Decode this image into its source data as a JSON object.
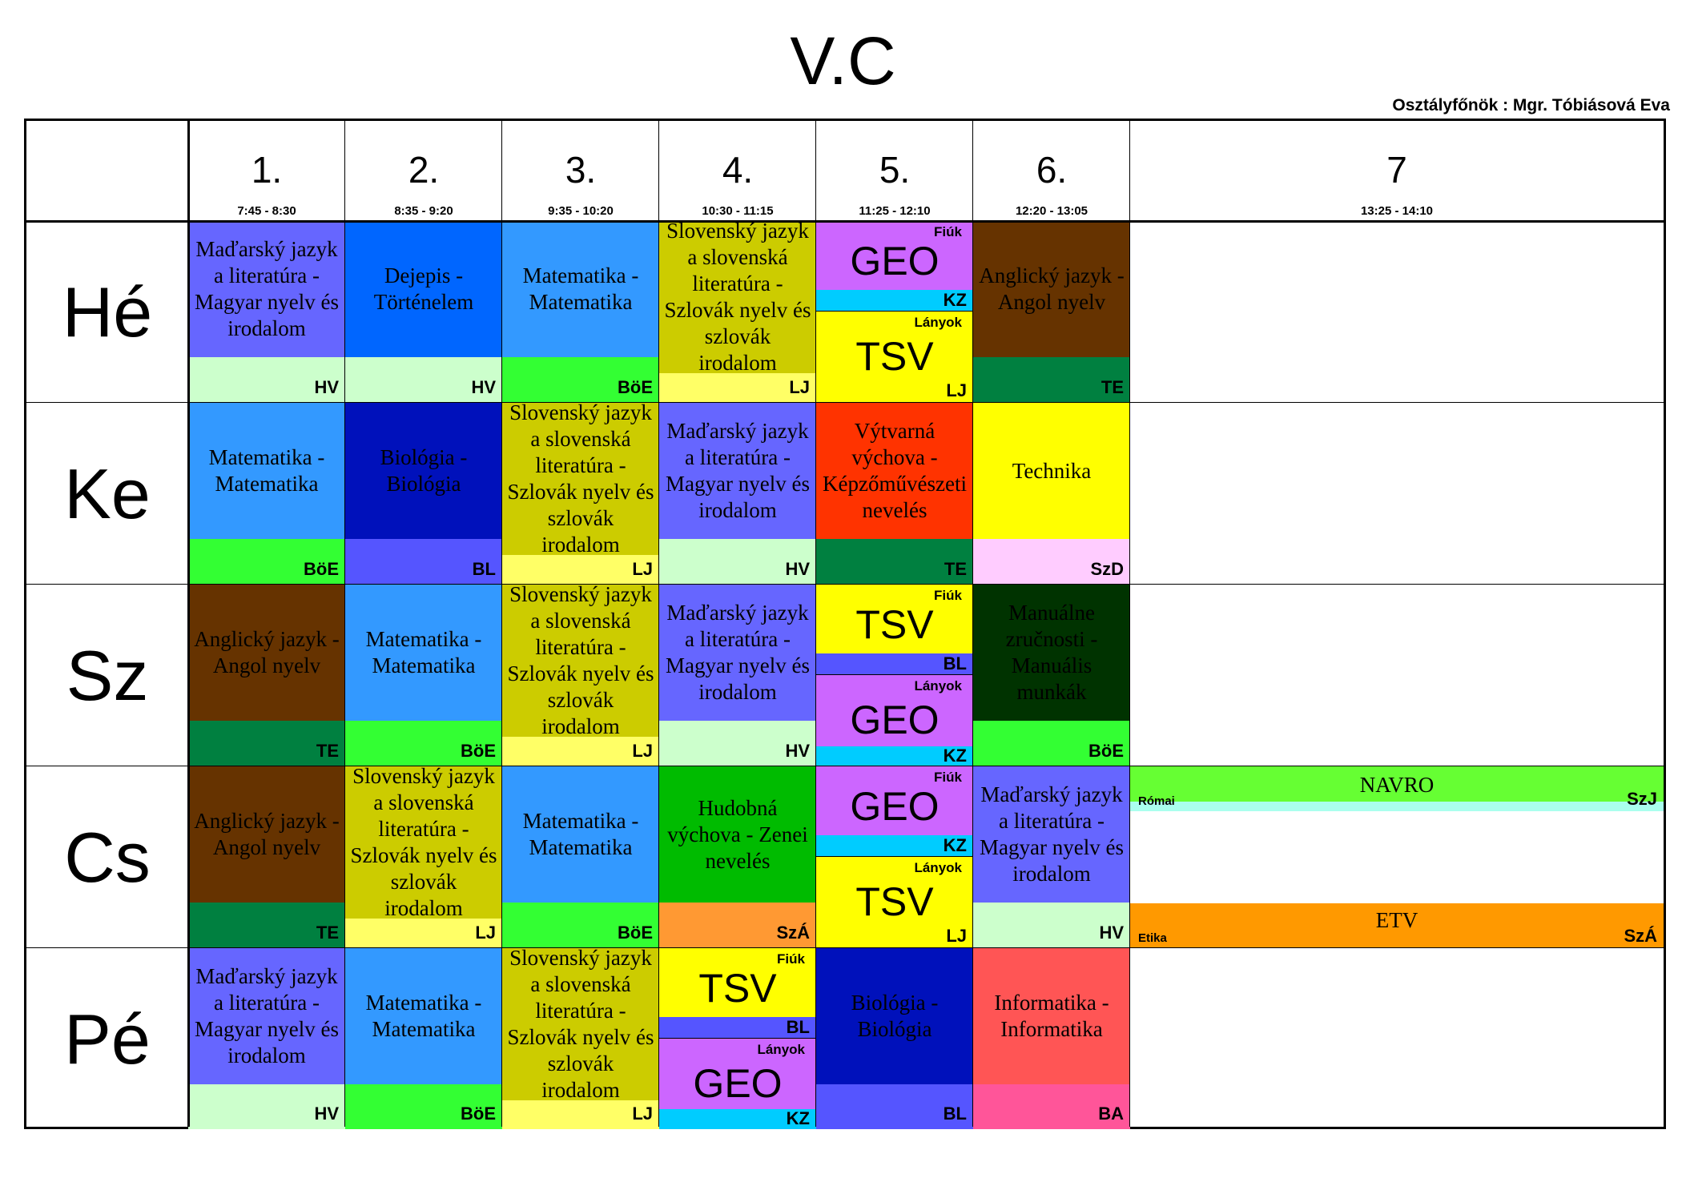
{
  "title": "V.C",
  "teacher": "Osztályfőnök : Mgr. Tóbiásová Eva",
  "periods": [
    {
      "num": "1.",
      "time": "7:45 - 8:30"
    },
    {
      "num": "2.",
      "time": "8:35 - 9:20"
    },
    {
      "num": "3.",
      "time": "9:35 - 10:20"
    },
    {
      "num": "4.",
      "time": "10:30 - 11:15"
    },
    {
      "num": "5.",
      "time": "11:25 - 12:10"
    },
    {
      "num": "6.",
      "time": "12:20 - 13:05"
    },
    {
      "num": "7",
      "time": "13:25 - 14:10"
    }
  ],
  "days": [
    "Hé",
    "Ke",
    "Sz",
    "Cs",
    "Pé"
  ],
  "cells": {
    "he1": {
      "subject": "Maďarský jazyk a literatúra - Magyar nyelv és irodalom",
      "teacher": "HV"
    },
    "he2": {
      "subject": "Dejepis - Történelem",
      "teacher": "HV"
    },
    "he3": {
      "subject": "Matematika - Matematika",
      "teacher": "BöE"
    },
    "he4": {
      "subject": "Slovenský jazyk a slovenská literatúra - Szlovák nyelv és szlovák irodalom",
      "teacher": "LJ"
    },
    "he5a": {
      "group": "Fiúk",
      "subject": "GEO",
      "teacher": "KZ"
    },
    "he5b": {
      "group": "Lányok",
      "subject": "TSV",
      "teacher": "LJ"
    },
    "he6": {
      "subject": "Anglický jazyk - Angol nyelv",
      "teacher": "TE"
    },
    "ke1": {
      "subject": "Matematika - Matematika",
      "teacher": "BöE"
    },
    "ke2": {
      "subject": "Biológia - Biológia",
      "teacher": "BL"
    },
    "ke3": {
      "subject": "Slovenský jazyk a slovenská literatúra - Szlovák nyelv és szlovák irodalom",
      "teacher": "LJ"
    },
    "ke4": {
      "subject": "Maďarský jazyk a literatúra - Magyar nyelv és irodalom",
      "teacher": "HV"
    },
    "ke5": {
      "subject": "Výtvarná výchova - Képzőművészeti nevelés",
      "teacher": "TE"
    },
    "ke6": {
      "subject": "Technika",
      "teacher": "SzD"
    },
    "sz1": {
      "subject": "Anglický jazyk - Angol nyelv",
      "teacher": "TE"
    },
    "sz2": {
      "subject": "Matematika - Matematika",
      "teacher": "BöE"
    },
    "sz3": {
      "subject": "Slovenský jazyk a slovenská literatúra - Szlovák nyelv és szlovák irodalom",
      "teacher": "LJ"
    },
    "sz4": {
      "subject": "Maďarský jazyk a literatúra - Magyar nyelv és irodalom",
      "teacher": "HV"
    },
    "sz5a": {
      "group": "Fiúk",
      "subject": "TSV",
      "teacher": "BL"
    },
    "sz5b": {
      "group": "Lányok",
      "subject": "GEO",
      "teacher": "KZ"
    },
    "sz6": {
      "subject": "Manuálne zručnosti - Manuális munkák",
      "teacher": "BöE"
    },
    "cs1": {
      "subject": "Anglický jazyk - Angol nyelv",
      "teacher": "TE"
    },
    "cs2": {
      "subject": "Slovenský jazyk a slovenská literatúra - Szlovák nyelv és szlovák irodalom",
      "teacher": "LJ"
    },
    "cs3": {
      "subject": "Matematika - Matematika",
      "teacher": "BöE"
    },
    "cs4": {
      "subject": "Hudobná výchova - Zenei nevelés",
      "teacher": "SzÁ"
    },
    "cs5a": {
      "group": "Fiúk",
      "subject": "GEO",
      "teacher": "KZ"
    },
    "cs5b": {
      "group": "Lányok",
      "subject": "TSV",
      "teacher": "LJ"
    },
    "cs6": {
      "subject": "Maďarský jazyk a literatúra - Magyar nyelv és irodalom",
      "teacher": "HV"
    },
    "cs7a": {
      "group": "Római",
      "subject": "NAVRO",
      "teacher": "SzJ"
    },
    "cs7b": {
      "group": "Etika",
      "subject": "ETV",
      "teacher": "SzÁ"
    },
    "pe1": {
      "subject": "Maďarský jazyk a literatúra - Magyar nyelv és irodalom",
      "teacher": "HV"
    },
    "pe2": {
      "subject": "Matematika - Matematika",
      "teacher": "BöE"
    },
    "pe3": {
      "subject": "Slovenský jazyk a slovenská literatúra - Szlovák nyelv és szlovák irodalom",
      "teacher": "LJ"
    },
    "pe4a": {
      "group": "Fiúk",
      "subject": "TSV",
      "teacher": "BL"
    },
    "pe4b": {
      "group": "Lányok",
      "subject": "GEO",
      "teacher": "KZ"
    },
    "pe5": {
      "subject": "Biológia - Biológia",
      "teacher": "BL"
    },
    "pe6": {
      "subject": "Informatika - Informatika",
      "teacher": "BA"
    }
  },
  "colors": {
    "hungarian": "#6666ff",
    "history": "#0066ff",
    "math": "#3399ff",
    "slovak": "#cccc00",
    "geo": "#cc66ff",
    "tsv": "#ffff00",
    "english": "#663300",
    "biology": "#0011bb",
    "art": "#ff3300",
    "technika": "#ffff00",
    "manual": "#003300",
    "music": "#00bb00",
    "informatics": "#ff5555",
    "hv": "#ccffcc",
    "boe": "#33ff33",
    "lj": "#ffff66",
    "te": "#008040",
    "bl": "#5555ff",
    "kz": "#00ccff",
    "szd": "#ffccff",
    "sza": "#ff9933",
    "ba": "#ff5599",
    "navro": "#66ff33",
    "szj": "#aaffee"
  }
}
